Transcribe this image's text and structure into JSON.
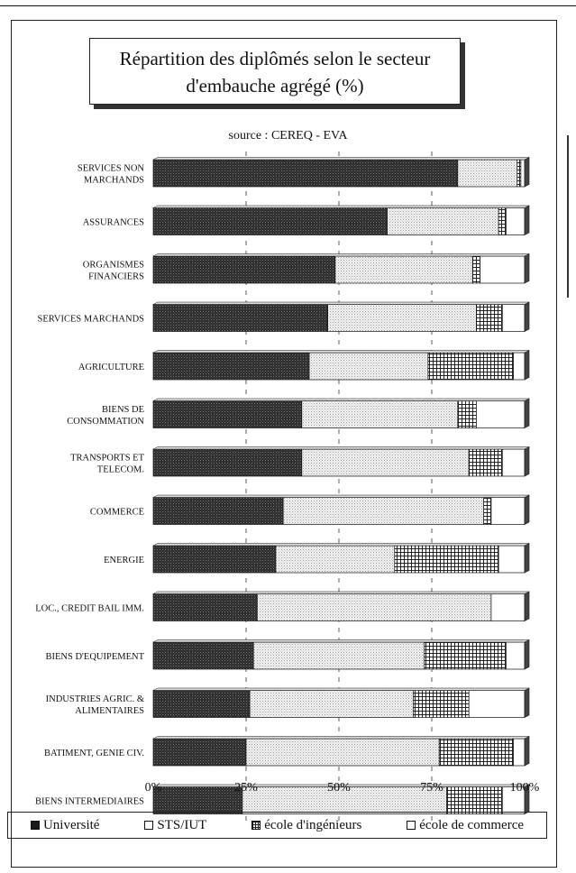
{
  "title": [
    "Répartition des diplômés selon le secteur",
    "d'embauche agrégé (%)"
  ],
  "source": "source : CEREQ - EVA",
  "chart_data": {
    "type": "bar",
    "orientation": "horizontal",
    "stacked": "100%",
    "title": "Répartition des diplômés selon le secteur d'embauche agrégé (%)",
    "categories": [
      [
        "SERVICES NON",
        "MARCHANDS"
      ],
      [
        "ASSURANCES"
      ],
      [
        "ORGANISMES",
        "FINANCIERS"
      ],
      [
        "SERVICES MARCHANDS"
      ],
      [
        "AGRICULTURE"
      ],
      [
        "BIENS DE",
        "CONSOMMATION"
      ],
      [
        "TRANSPORTS ET",
        "TELECOM."
      ],
      [
        "COMMERCE"
      ],
      [
        "ENERGIE"
      ],
      [
        "LOC., CREDIT BAIL IMM."
      ],
      [
        "BIENS D'EQUIPEMENT"
      ],
      [
        "INDUSTRIES AGRIC. &",
        "ALIMENTAIRES"
      ],
      [
        "BATIMENT, GENIE CIV."
      ],
      [
        "BIENS INTERMEDIAIRES"
      ]
    ],
    "series": [
      {
        "name": "Université",
        "color": "#2a2a2a",
        "pattern": "dark",
        "values": [
          82,
          63,
          49,
          47,
          42,
          40,
          40,
          35,
          33,
          28,
          27,
          26,
          25,
          24
        ]
      },
      {
        "name": "STS/IUT",
        "color": "#e6e6e6",
        "pattern": "dots",
        "values": [
          16,
          30,
          37,
          40,
          32,
          42,
          45,
          54,
          32,
          63,
          46,
          44,
          52,
          55
        ]
      },
      {
        "name": "école d'ingénieurs",
        "color": "#8a8a8a",
        "pattern": "grid",
        "values": [
          1,
          2,
          2,
          7,
          23,
          5,
          9,
          2,
          28,
          0,
          22,
          15,
          20,
          15
        ]
      },
      {
        "name": "école de commerce",
        "color": "#ffffff",
        "pattern": "plain",
        "values": [
          1,
          5,
          12,
          6,
          3,
          13,
          6,
          9,
          7,
          9,
          5,
          15,
          3,
          6
        ]
      }
    ],
    "xticks": [
      "0%",
      "25%",
      "50%",
      "75%",
      "100%"
    ],
    "xlim": [
      0,
      100
    ],
    "grid": "dashed vertical at 25, 50, 75",
    "legend": "bottom"
  }
}
